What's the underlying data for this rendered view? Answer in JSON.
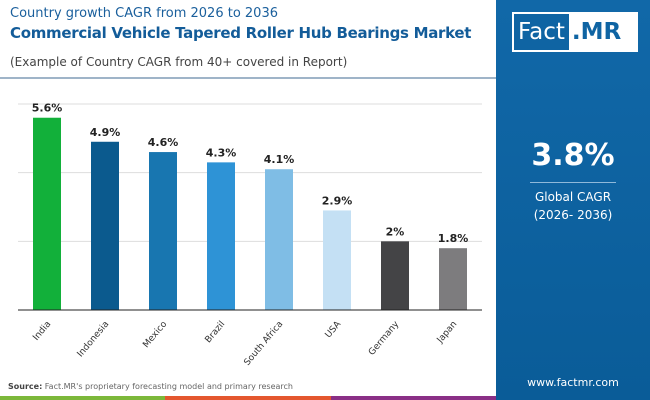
{
  "header": {
    "subtitle": "Country growth CAGR from 2026 to 2036",
    "title": "Commercial Vehicle Tapered Roller Hub Bearings Market",
    "note": "(Example of Country CAGR from 40+ covered in Report)"
  },
  "logo": {
    "text_a": "Fact",
    "text_b": ".MR"
  },
  "global": {
    "value": "3.8%",
    "label1": "Global CAGR",
    "label2": "(2026- 2036)"
  },
  "footer": {
    "source_label": "Source:",
    "source_text": " Fact.MR's proprietary forecasting model and primary research",
    "url": "www.factmr.com"
  },
  "colors": {
    "accent": "#1168a8",
    "stripe": [
      "#7cb83a",
      "#e4572e",
      "#8a2f86"
    ]
  },
  "chart_data": {
    "type": "bar",
    "categories": [
      "India",
      "Indonesia",
      "Mexico",
      "Brazil",
      "South Africa",
      "USA",
      "Germany",
      "Japan"
    ],
    "values": [
      5.6,
      4.9,
      4.6,
      4.3,
      4.1,
      2.9,
      2.0,
      1.8
    ],
    "labels": [
      "5.6%",
      "4.9%",
      "4.6%",
      "4.3%",
      "4.1%",
      "2.9%",
      "2%",
      "1.8%"
    ],
    "colors": [
      "#12b03a",
      "#0b5a8e",
      "#1876b0",
      "#2e93d6",
      "#7fbde5",
      "#c4e0f4",
      "#444446",
      "#7d7c7e"
    ],
    "ylim": [
      0,
      6
    ],
    "grid": true
  }
}
